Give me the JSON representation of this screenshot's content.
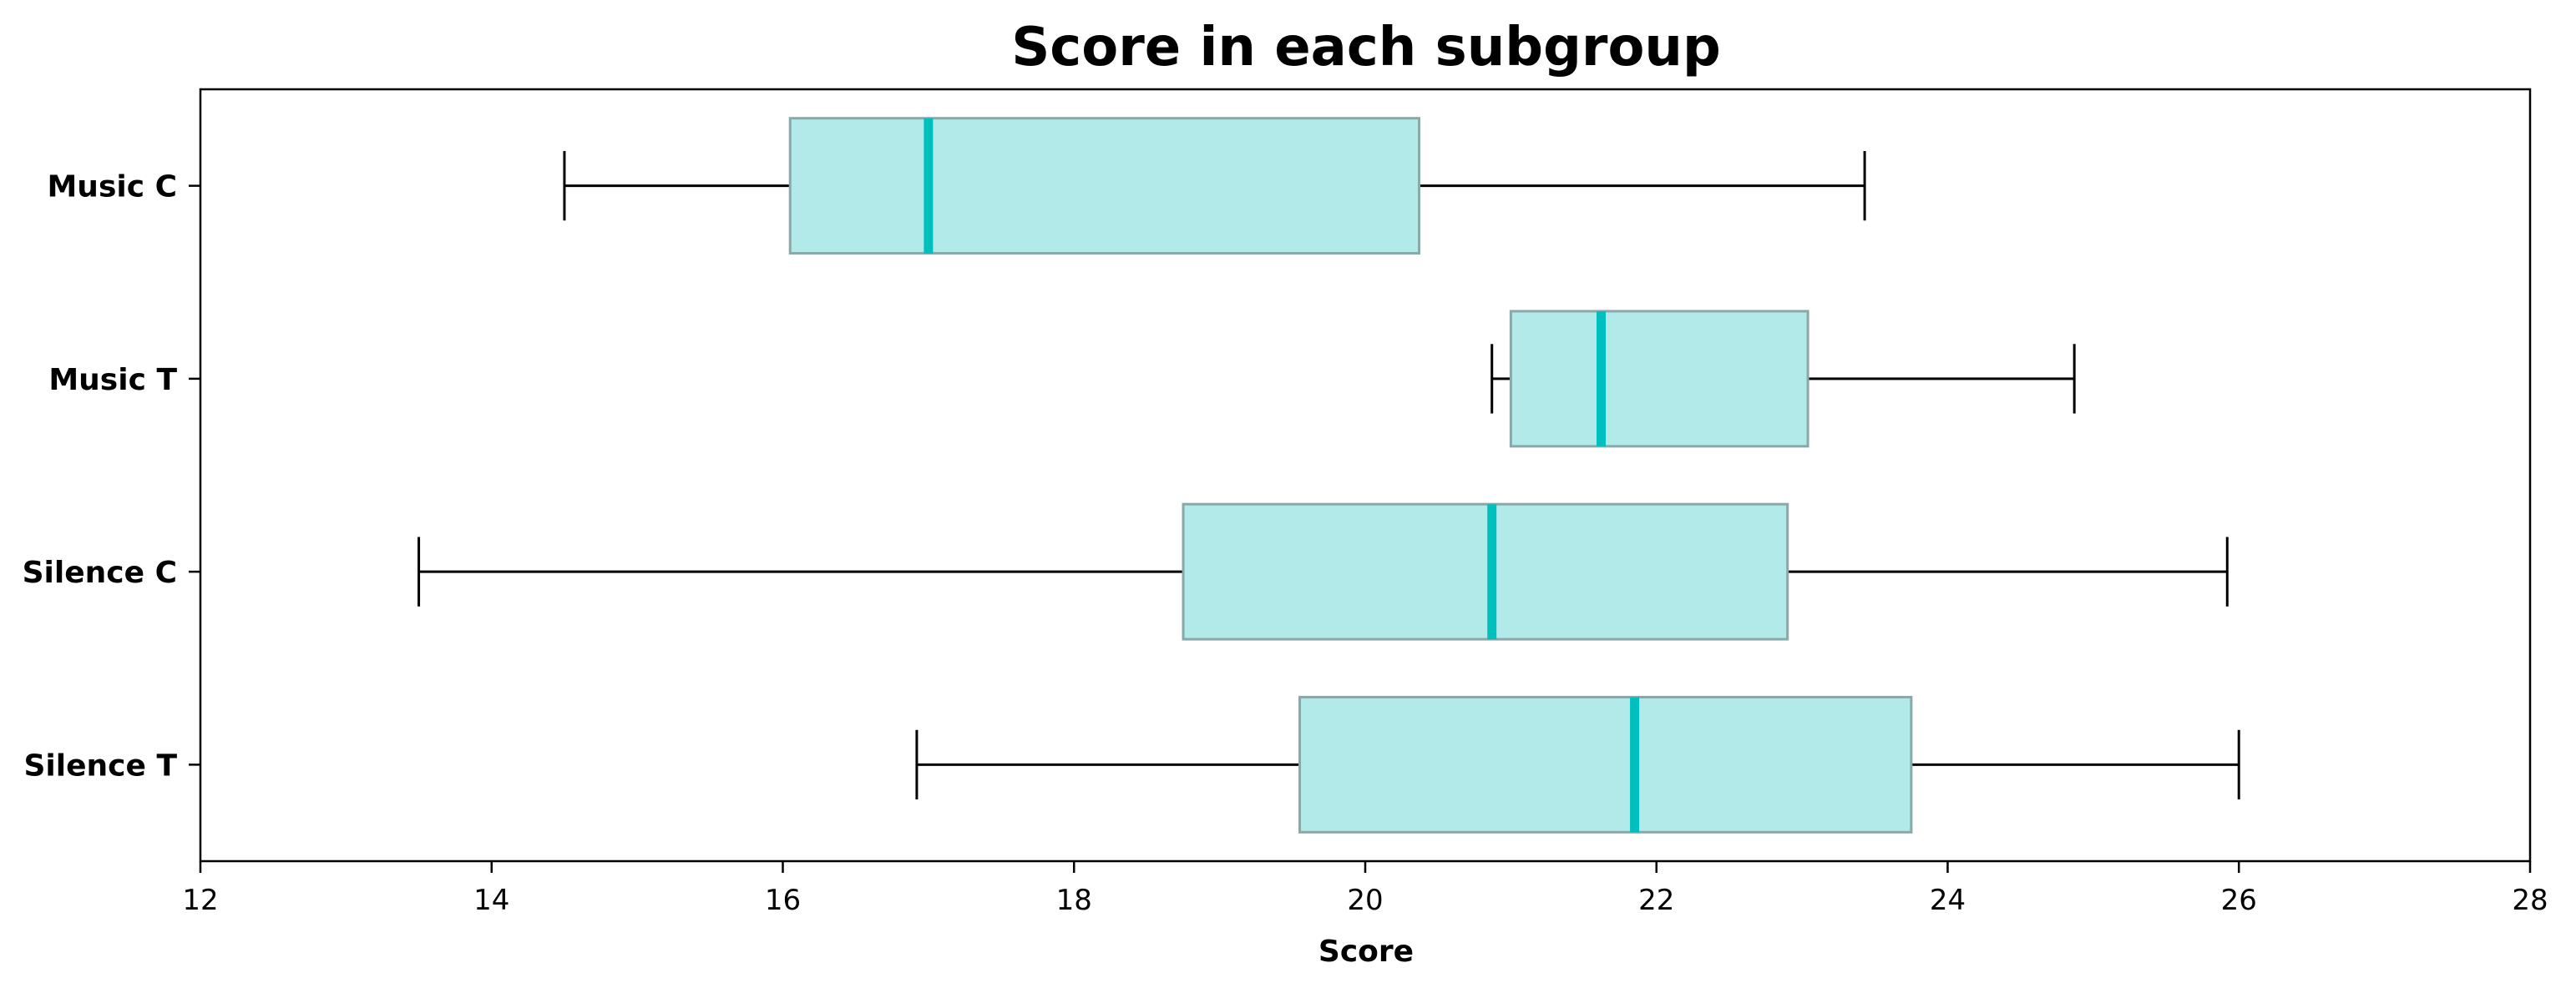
{
  "chart_data": {
    "type": "boxplot",
    "orientation": "horizontal",
    "title": "Score in each subgroup",
    "xlabel": "Score",
    "ylabel": "",
    "xlim": [
      12,
      28
    ],
    "xticks": [
      12,
      14,
      16,
      18,
      20,
      22,
      24,
      26,
      28
    ],
    "grid": false,
    "colors": {
      "box_fill": "#b2eaea",
      "box_edge": "#8aa8a8",
      "median": "#00bfbf",
      "whisker": "#000000"
    },
    "categories": [
      "Music C",
      "Music T",
      "Silence C",
      "Silence T"
    ],
    "boxes": [
      {
        "label": "Music C",
        "whislo": 14.5,
        "q1": 16.05,
        "med": 17.0,
        "q3": 20.37,
        "whishi": 23.43
      },
      {
        "label": "Music T",
        "whislo": 20.87,
        "q1": 21.0,
        "med": 21.62,
        "q3": 23.04,
        "whishi": 24.87
      },
      {
        "label": "Silence C",
        "whislo": 13.5,
        "q1": 18.75,
        "med": 20.87,
        "q3": 22.9,
        "whishi": 25.92
      },
      {
        "label": "Silence T",
        "whislo": 16.92,
        "q1": 19.55,
        "med": 21.85,
        "q3": 23.75,
        "whishi": 26.0
      }
    ]
  }
}
